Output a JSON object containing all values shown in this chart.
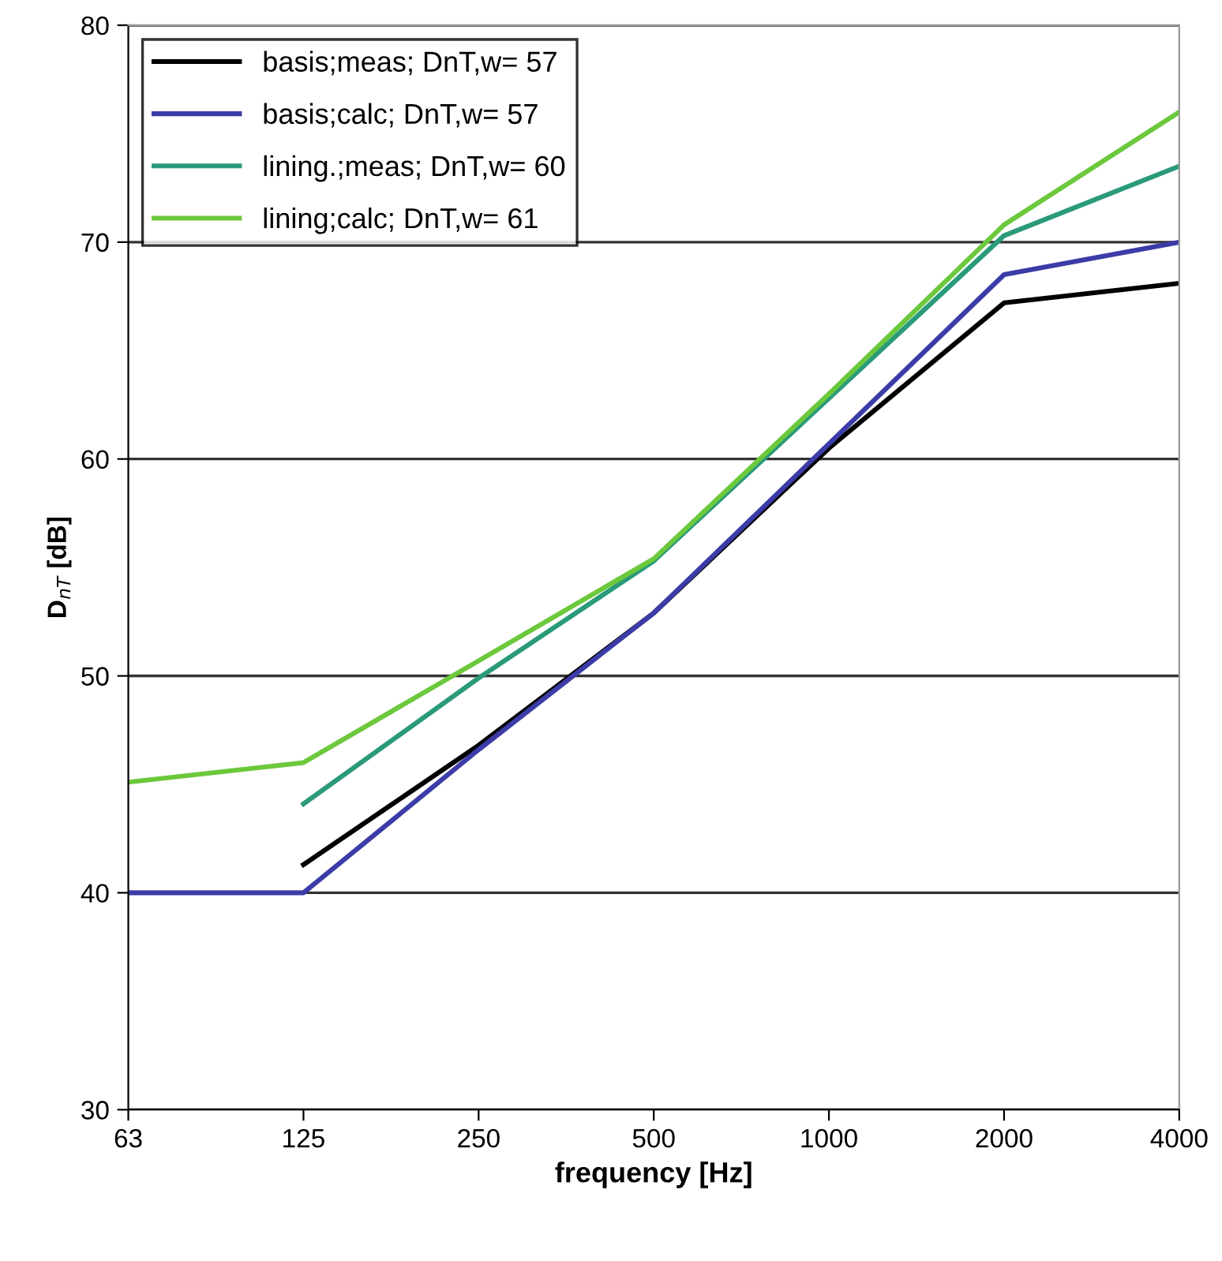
{
  "chart_data": {
    "type": "line",
    "xlabel": "frequency [Hz]",
    "ylabel": "D$_{nT}$ [dB]",
    "categories": [
      "63",
      "125",
      "250",
      "500",
      "1000",
      "2000",
      "4000"
    ],
    "ylim": [
      30,
      80
    ],
    "yticks": [
      30,
      40,
      50,
      60,
      70,
      80
    ],
    "grid": "y",
    "legend": "top left",
    "marker": "none",
    "line_style": "solid",
    "series": [
      {
        "name": "basis;meas; DnT,w= 57",
        "color": "#000000",
        "values": [
          null,
          41.3,
          46.8,
          52.9,
          60.5,
          67.2,
          68.1
        ]
      },
      {
        "name": "basis;calc; DnT,w= 57",
        "color": "#3c3ca8",
        "values": [
          40,
          40,
          46.6,
          52.9,
          60.7,
          68.5,
          70.0
        ]
      },
      {
        "name": "lining.;meas; DnT,w= 60",
        "color": "#2a9a7a",
        "values": [
          null,
          44.1,
          49.9,
          55.3,
          62.8,
          70.3,
          73.5
        ]
      },
      {
        "name": "lining;calc; DnT,w= 61",
        "color": "#6cc83c",
        "values": [
          45.1,
          46.0,
          50.7,
          55.4,
          63.0,
          70.8,
          76.0
        ]
      }
    ]
  }
}
